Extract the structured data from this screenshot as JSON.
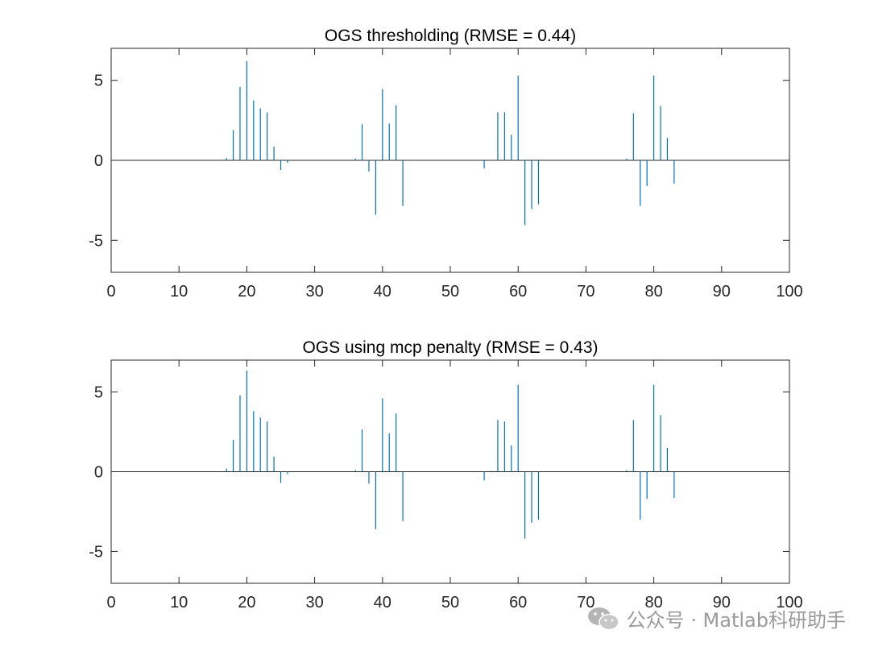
{
  "chart_data": [
    {
      "type": "stem",
      "title": "OGS thresholding (RMSE = 0.44)",
      "xlabel": "",
      "ylabel": "",
      "xlim": [
        0,
        100
      ],
      "ylim": [
        -7,
        7
      ],
      "xticks": [
        "0",
        "10",
        "20",
        "30",
        "40",
        "50",
        "60",
        "70",
        "80",
        "90",
        "100"
      ],
      "yticks": [
        "-5",
        "0",
        "5"
      ],
      "color": "#0072BD",
      "x": [
        17,
        18,
        19,
        20,
        21,
        22,
        23,
        24,
        25,
        26,
        36,
        37,
        38,
        39,
        40,
        41,
        42,
        43,
        55,
        57,
        58,
        59,
        60,
        61,
        62,
        63,
        76,
        77,
        78,
        79,
        80,
        81,
        82,
        83
      ],
      "y": [
        0.15,
        1.9,
        4.6,
        6.2,
        3.75,
        3.25,
        3.0,
        0.85,
        -0.6,
        -0.15,
        0.1,
        2.25,
        -0.7,
        -3.4,
        4.45,
        2.3,
        3.45,
        -2.85,
        -0.5,
        3.0,
        3.0,
        1.6,
        5.3,
        -4.05,
        -3.05,
        -2.75,
        0.1,
        2.95,
        -2.85,
        -1.6,
        5.3,
        3.4,
        1.4,
        -1.45
      ]
    },
    {
      "type": "stem",
      "title": "OGS using mcp penalty (RMSE = 0.43)",
      "xlabel": "",
      "ylabel": "",
      "xlim": [
        0,
        100
      ],
      "ylim": [
        -7,
        7
      ],
      "xticks": [
        "0",
        "10",
        "20",
        "30",
        "40",
        "50",
        "60",
        "70",
        "80",
        "90",
        "100"
      ],
      "yticks": [
        "-5",
        "0",
        "5"
      ],
      "color": "#0072BD",
      "x": [
        17,
        18,
        19,
        20,
        21,
        22,
        23,
        24,
        25,
        26,
        36,
        37,
        38,
        39,
        40,
        41,
        42,
        43,
        55,
        56,
        57,
        58,
        59,
        60,
        61,
        62,
        63,
        76,
        77,
        78,
        79,
        80,
        81,
        82,
        83
      ],
      "y": [
        0.2,
        2.0,
        4.8,
        6.35,
        3.8,
        3.4,
        3.15,
        0.95,
        -0.7,
        -0.15,
        0.1,
        2.65,
        -0.75,
        -3.6,
        4.6,
        2.4,
        3.65,
        -3.1,
        -0.55,
        0.05,
        3.25,
        3.15,
        1.65,
        5.45,
        -4.2,
        -3.2,
        -3.0,
        0.1,
        3.25,
        -3.0,
        -1.7,
        5.45,
        3.55,
        1.5,
        -1.65
      ]
    }
  ],
  "watermark": {
    "text": "公众号 · Matlab科研助手",
    "icon": "wechat-icon"
  }
}
